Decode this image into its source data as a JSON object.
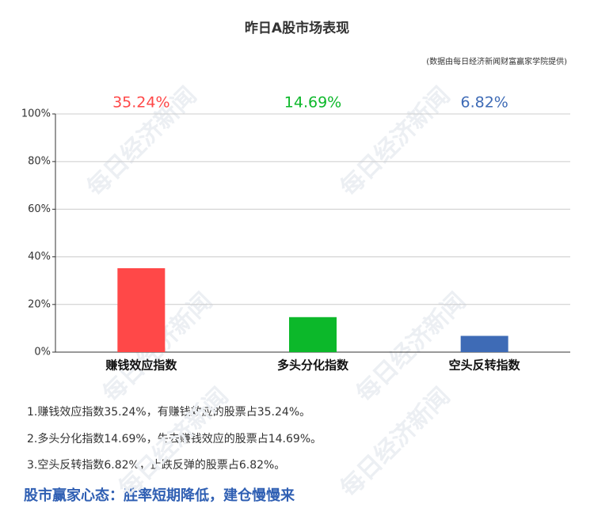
{
  "chart_data": {
    "type": "bar",
    "title": "昨日A股市场表现",
    "subtitle": "(数据由每日经济新闻财富赢家学院提供)",
    "watermark": "每日经济新闻",
    "categories": [
      "赚钱效应指数",
      "多头分化指数",
      "空头反转指数"
    ],
    "values": [
      35.24,
      14.69,
      6.82
    ],
    "value_labels": [
      "35.24%",
      "14.69%",
      "6.82%"
    ],
    "colors": [
      "#ff4848",
      "#0cb82a",
      "#3e6bb6"
    ],
    "ylim": [
      0,
      100
    ],
    "yticks": [
      {
        "value": 0,
        "label": "0%"
      },
      {
        "value": 20,
        "label": "20%"
      },
      {
        "value": 40,
        "label": "40%"
      },
      {
        "value": 60,
        "label": "60%"
      },
      {
        "value": 80,
        "label": "80%"
      },
      {
        "value": 100,
        "label": "100%"
      }
    ],
    "grid": true
  },
  "notes": [
    "1.赚钱效应指数35.24%，有赚钱效应的股票占35.24%。",
    "2.多头分化指数14.69%，失去赚钱效应的股票占14.69%。",
    "3.空头反转指数6.82%，止跌反弹的股票占6.82%。"
  ],
  "footer": "股市赢家心态：胜率短期降低，建仓慢慢来"
}
